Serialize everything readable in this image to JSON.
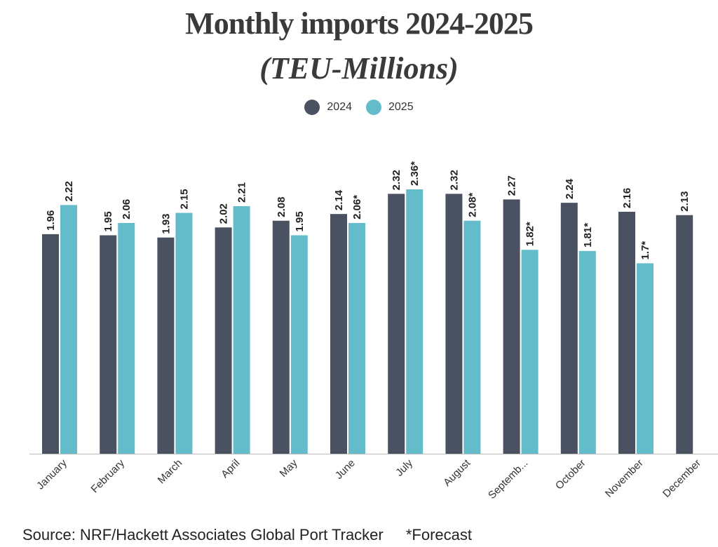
{
  "title": "Monthly imports 2024-2025",
  "subtitle": "(TEU-Millions)",
  "source": "Source: NRF/Hackett Associates Global Port Tracker",
  "footnote": "*Forecast",
  "colors": {
    "s2024": "#4a5261",
    "s2025": "#64bccb",
    "axis": "#bbbbbb",
    "text": "#222222"
  },
  "chart_data": {
    "type": "bar",
    "categories": [
      "January",
      "February",
      "March",
      "April",
      "May",
      "June",
      "July",
      "August",
      "Septemb...",
      "October",
      "November",
      "December"
    ],
    "series": [
      {
        "name": "2024",
        "values": [
          1.96,
          1.95,
          1.93,
          2.02,
          2.08,
          2.14,
          2.32,
          2.32,
          2.27,
          2.24,
          2.16,
          2.13
        ],
        "labels": [
          "1.96",
          "1.95",
          "1.93",
          "2.02",
          "2.08",
          "2.14",
          "2.32",
          "2.32",
          "2.27",
          "2.24",
          "2.16",
          "2.13"
        ]
      },
      {
        "name": "2025",
        "values": [
          2.22,
          2.06,
          2.15,
          2.21,
          1.95,
          2.06,
          2.36,
          2.08,
          1.82,
          1.81,
          1.7,
          null
        ],
        "labels": [
          "2.22",
          "2.06",
          "2.15",
          "2.21",
          "1.95",
          "2.06*",
          "2.36*",
          "2.08*",
          "1.82*",
          "1.81*",
          "1.7*",
          ""
        ]
      }
    ],
    "ylim": [
      0,
      2.36
    ],
    "xlabel": "",
    "ylabel": "",
    "grid": false,
    "legend": "top-center"
  }
}
